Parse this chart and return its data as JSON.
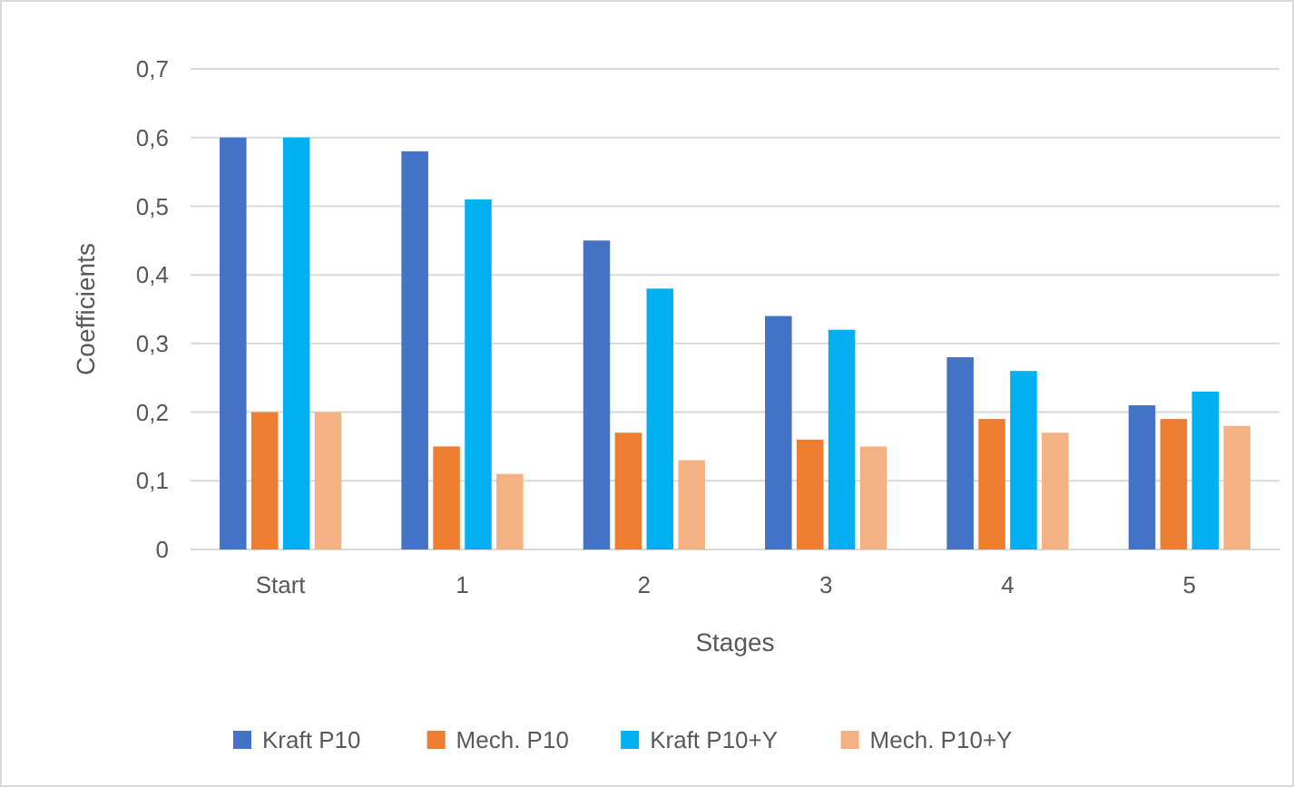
{
  "chart_data": {
    "type": "bar",
    "xlabel": "Stages",
    "ylabel": "Coefficients",
    "categories": [
      "Start",
      "1",
      "2",
      "3",
      "4",
      "5"
    ],
    "series": [
      {
        "name": "Kraft P10",
        "color": "#4472c4",
        "values": [
          0.6,
          0.58,
          0.45,
          0.34,
          0.28,
          0.21
        ]
      },
      {
        "name": "Mech. P10",
        "color": "#ed7d31",
        "values": [
          0.2,
          0.15,
          0.17,
          0.16,
          0.19,
          0.19
        ]
      },
      {
        "name": "Kraft P10+Y",
        "color": "#00b0f0",
        "values": [
          0.6,
          0.51,
          0.38,
          0.32,
          0.26,
          0.23
        ]
      },
      {
        "name": "Mech. P10+Y",
        "color": "#f4b183",
        "values": [
          0.2,
          0.11,
          0.13,
          0.15,
          0.17,
          0.18
        ]
      }
    ],
    "ylim": [
      0,
      0.7
    ],
    "yticks": [
      0,
      {
        "value": 0.1,
        "label": "0,1"
      },
      {
        "value": 0.2,
        "label": "0,2"
      },
      {
        "value": 0.3,
        "label": "0,3"
      },
      {
        "value": 0.4,
        "label": "0,4"
      },
      {
        "value": 0.5,
        "label": "0,5"
      },
      {
        "value": 0.6,
        "label": "0,6"
      },
      {
        "value": 0.7,
        "label": "0,7"
      }
    ],
    "grid": "y",
    "legend": "bottom"
  }
}
